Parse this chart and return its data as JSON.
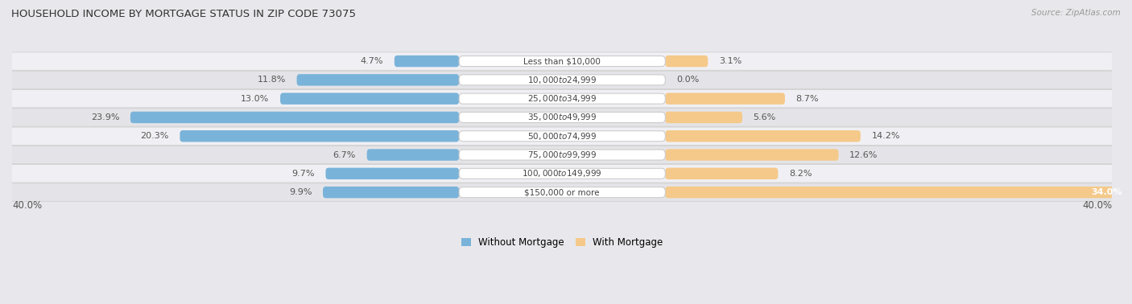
{
  "title": "HOUSEHOLD INCOME BY MORTGAGE STATUS IN ZIP CODE 73075",
  "source": "Source: ZipAtlas.com",
  "categories": [
    "Less than $10,000",
    "$10,000 to $24,999",
    "$25,000 to $34,999",
    "$35,000 to $49,999",
    "$50,000 to $74,999",
    "$75,000 to $99,999",
    "$100,000 to $149,999",
    "$150,000 or more"
  ],
  "without_mortgage": [
    4.7,
    11.8,
    13.0,
    23.9,
    20.3,
    6.7,
    9.7,
    9.9
  ],
  "with_mortgage": [
    3.1,
    0.0,
    8.7,
    5.6,
    14.2,
    12.6,
    8.2,
    34.0
  ],
  "color_without": "#7ab3d9",
  "color_with": "#f5c98a",
  "axis_max": 40.0,
  "bg_color": "#e8e8ec",
  "row_bg_light": "#f0f0f4",
  "row_bg_dark": "#e4e4e8",
  "label_pill_color": "#ffffff",
  "title_color": "#333333",
  "pct_color": "#555555",
  "cat_color": "#444444",
  "legend_without": "Without Mortgage",
  "legend_with": "With Mortgage"
}
